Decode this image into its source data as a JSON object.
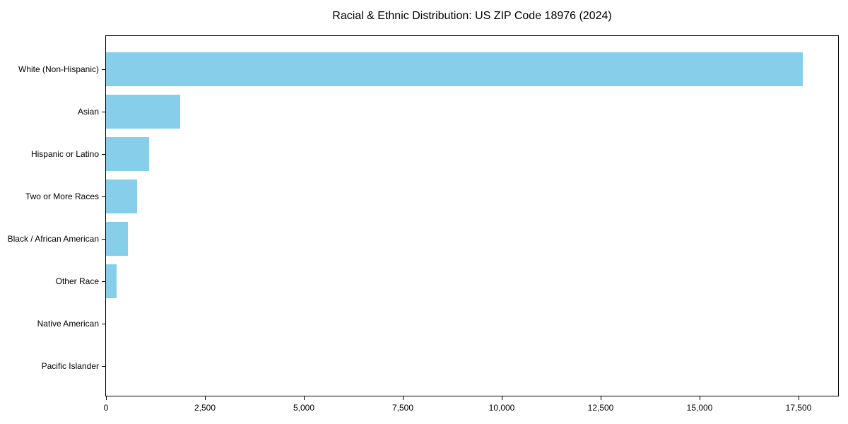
{
  "chart_data": {
    "type": "bar",
    "orientation": "horizontal",
    "title": "Racial & Ethnic Distribution: US ZIP Code 18976 (2024)",
    "categories": [
      "White (Non-Hispanic)",
      "Asian",
      "Hispanic or Latino",
      "Two or More Races",
      "Black / African American",
      "Other Race",
      "Native American",
      "Pacific Islander"
    ],
    "values": [
      17600,
      1870,
      1090,
      780,
      550,
      270,
      0,
      0
    ],
    "bar_color": "#87CEEB",
    "axis_color": "#000000",
    "background_color": "#ffffff",
    "xlim": [
      0,
      18500
    ],
    "x_ticks": [
      {
        "value": 0,
        "label": "0"
      },
      {
        "value": 2500,
        "label": "2,500"
      },
      {
        "value": 5000,
        "label": "5,000"
      },
      {
        "value": 7500,
        "label": "7,500"
      },
      {
        "value": 10000,
        "label": "10,000"
      },
      {
        "value": 12500,
        "label": "12,500"
      },
      {
        "value": 15000,
        "label": "15,000"
      },
      {
        "value": 17500,
        "label": "17,500"
      }
    ],
    "xlabel": "",
    "ylabel": "",
    "grid": false
  }
}
